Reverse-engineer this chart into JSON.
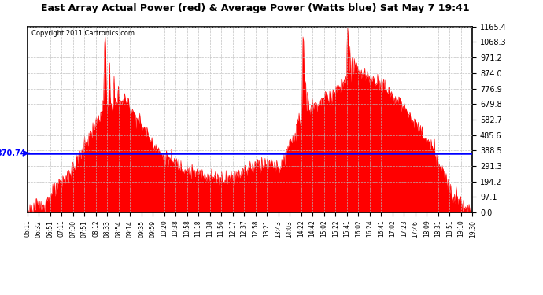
{
  "title": "East Array Actual Power (red) & Average Power (Watts blue) Sat May 7 19:41",
  "copyright": "Copyright 2011 Cartronics.com",
  "avg_line_y": 370.74,
  "avg_line_label": "370.74",
  "ymax": 1165.4,
  "ymin": 0.0,
  "yticks": [
    0.0,
    97.1,
    194.2,
    291.3,
    388.5,
    485.6,
    582.7,
    679.8,
    776.9,
    874.0,
    971.2,
    1068.3,
    1165.4
  ],
  "fill_color": "#FF0000",
  "line_color": "#FF0000",
  "avg_line_color": "#0000FF",
  "background_color": "#FFFFFF",
  "grid_color": "#BBBBBB",
  "xtick_labels": [
    "06:11",
    "06:32",
    "06:51",
    "07:11",
    "07:30",
    "07:51",
    "08:12",
    "08:33",
    "08:54",
    "09:14",
    "09:35",
    "09:59",
    "10:20",
    "10:38",
    "10:58",
    "11:18",
    "11:38",
    "11:56",
    "12:17",
    "12:37",
    "12:58",
    "13:21",
    "13:43",
    "14:03",
    "14:22",
    "14:42",
    "15:02",
    "15:22",
    "15:41",
    "16:02",
    "16:24",
    "16:41",
    "17:02",
    "17:23",
    "17:46",
    "18:09",
    "18:31",
    "18:51",
    "19:10",
    "19:30"
  ]
}
